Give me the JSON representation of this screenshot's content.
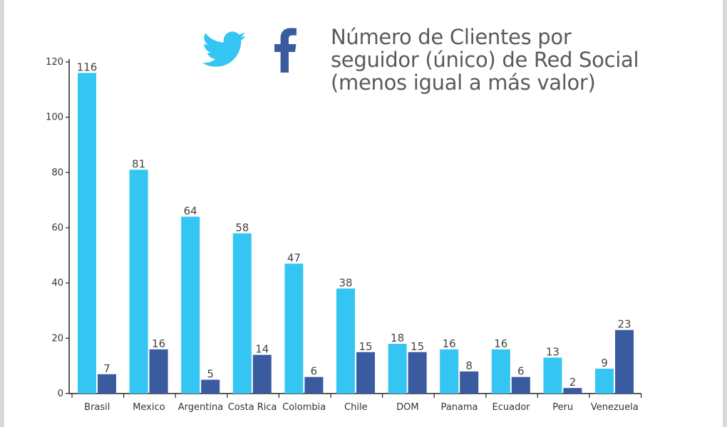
{
  "title_lines": [
    "Número de Clientes por",
    "seguidor (único) de Red Social",
    "(menos igual a más valor)"
  ],
  "icons": {
    "twitter": "twitter-icon",
    "facebook": "facebook-icon"
  },
  "colors": {
    "twitter": "#35c5f3",
    "facebook": "#3b5ba0",
    "text": "#5a5a5a"
  },
  "chart_data": {
    "type": "bar",
    "title": "Número de Clientes por seguidor (único) de Red Social (menos igual a más valor)",
    "categories": [
      "Brasil",
      "Mexico",
      "Argentina",
      "Costa Rica",
      "Colombia",
      "Chile",
      "DOM",
      "Panama",
      "Ecuador",
      "Peru",
      "Venezuela"
    ],
    "series": [
      {
        "name": "Twitter",
        "values": [
          116,
          81,
          64,
          58,
          47,
          38,
          18,
          16,
          16,
          13,
          9
        ]
      },
      {
        "name": "Facebook",
        "values": [
          7,
          16,
          5,
          14,
          6,
          15,
          15,
          8,
          6,
          2,
          23
        ]
      }
    ],
    "yticks": [
      0,
      20,
      40,
      60,
      80,
      100,
      120
    ],
    "ylim": [
      0,
      120
    ],
    "xlabel": "",
    "ylabel": "",
    "grid": false,
    "legend": "top (icons)"
  }
}
